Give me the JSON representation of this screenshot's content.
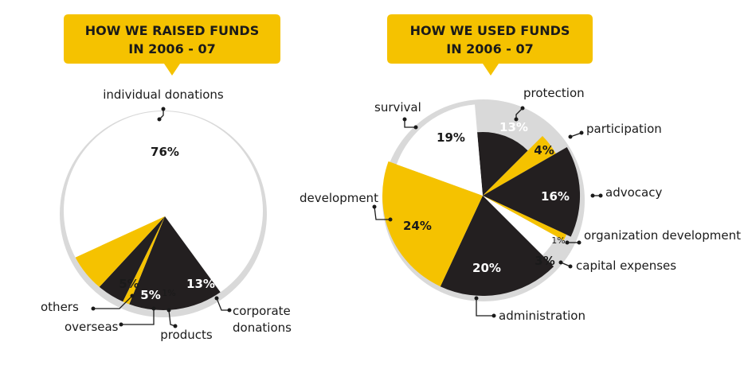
{
  "colors": {
    "yellow": "#f5c200",
    "black": "#231f20",
    "white": "#ffffff",
    "shadow": "#d9d9d9"
  },
  "chart_data": [
    {
      "type": "pie",
      "title": [
        "HOW WE RAISED FUNDS",
        "IN 2006 - 07"
      ],
      "slices": [
        {
          "label": "individual donations",
          "value": 76,
          "display": "76%",
          "color": "white"
        },
        {
          "label": "corporate donations",
          "value": 13,
          "display": "13%",
          "color": "black"
        },
        {
          "label": "products",
          "value": 1,
          "display": "1%",
          "color": "yellow"
        },
        {
          "label": "overseas",
          "value": 5,
          "display": "5%",
          "color": "black"
        },
        {
          "label": "others",
          "value": 5,
          "display": "5%",
          "color": "yellow"
        }
      ]
    },
    {
      "type": "pie",
      "title": [
        "HOW WE USED FUNDS",
        "IN 2006 - 07"
      ],
      "slices": [
        {
          "label": "protection",
          "value": 13,
          "display": "13%",
          "color": "black"
        },
        {
          "label": "participation",
          "value": 4,
          "display": "4%",
          "color": "yellow"
        },
        {
          "label": "advocacy",
          "value": 16,
          "display": "16%",
          "color": "black"
        },
        {
          "label": "organization development",
          "value": 1,
          "display": "1%",
          "color": "yellow"
        },
        {
          "label": "capital expenses",
          "value": 3,
          "display": "3%",
          "color": "white"
        },
        {
          "label": "administration",
          "value": 20,
          "display": "20%",
          "color": "black"
        },
        {
          "label": "development",
          "value": 24,
          "display": "24%",
          "color": "yellow"
        },
        {
          "label": "survival",
          "value": 19,
          "display": "19%",
          "color": "white"
        }
      ]
    }
  ]
}
